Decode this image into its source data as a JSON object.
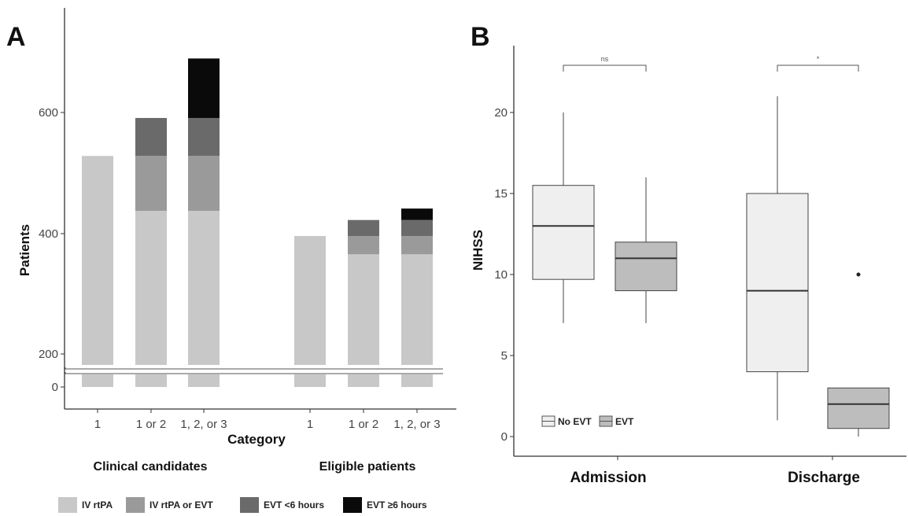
{
  "chart_data": [
    {
      "panel": "A",
      "type": "bar",
      "stacked": true,
      "ylabel": "Patients",
      "xlabel": "Category",
      "yticks": [
        0,
        200,
        400,
        600
      ],
      "ylim": [
        0,
        760
      ],
      "axis_break": true,
      "groups": [
        {
          "label": "Clinical candidates",
          "categories": [
            "1",
            "1 or 2",
            "1, 2, or 3"
          ]
        },
        {
          "label": "Eligible patients",
          "categories": [
            "1",
            "1 or 2",
            "1, 2, or 3"
          ]
        }
      ],
      "series": [
        {
          "name": "IV rtPA",
          "color": "#c8c8c8",
          "values": [
            505,
            385,
            385,
            330,
            290,
            290
          ]
        },
        {
          "name": "IV rtPA or EVT",
          "color": "#9a9a9a",
          "values": [
            0,
            120,
            120,
            0,
            40,
            40
          ]
        },
        {
          "name": "EVT <6 hours",
          "color": "#6a6a6a",
          "values": [
            0,
            83,
            83,
            0,
            35,
            35
          ]
        },
        {
          "name": "EVT ≥6 hours",
          "color": "#0a0a0a",
          "values": [
            0,
            0,
            130,
            0,
            0,
            25
          ]
        }
      ],
      "legend_position": "bottom"
    },
    {
      "panel": "B",
      "type": "box",
      "ylabel": "NIHSS",
      "yticks": [
        0,
        5,
        10,
        15,
        20
      ],
      "ylim": [
        -0.8,
        24
      ],
      "categories": [
        "Admission",
        "Discharge"
      ],
      "legend": [
        {
          "name": "No EVT",
          "color": "#efefef"
        },
        {
          "name": "EVT",
          "color": "#bdbdbd"
        }
      ],
      "legend_position": "bottom-left",
      "boxes": [
        {
          "category": "Admission",
          "group": "No EVT",
          "min": 7,
          "q1": 9.7,
          "median": 13,
          "q3": 15.5,
          "max": 20,
          "outliers": []
        },
        {
          "category": "Admission",
          "group": "EVT",
          "min": 7,
          "q1": 9,
          "median": 11,
          "q3": 12,
          "max": 16,
          "outliers": []
        },
        {
          "category": "Discharge",
          "group": "No EVT",
          "min": 1,
          "q1": 4,
          "median": 9,
          "q3": 15,
          "max": 21,
          "outliers": []
        },
        {
          "category": "Discharge",
          "group": "EVT",
          "min": 0,
          "q1": 0.5,
          "median": 2,
          "q3": 3,
          "max": 3,
          "outliers": [
            10
          ]
        }
      ],
      "significance": [
        {
          "category": "Admission",
          "label": "ns"
        },
        {
          "category": "Discharge",
          "label": "*"
        }
      ]
    }
  ]
}
